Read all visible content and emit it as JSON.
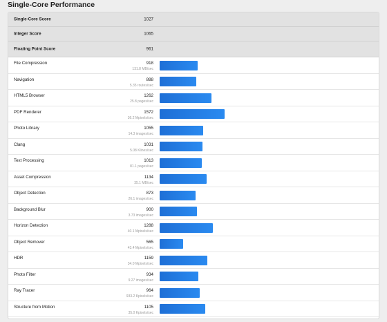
{
  "page": {
    "title": "Single-Core Performance"
  },
  "colors": {
    "bar": "#2079e3",
    "summary_bg": "#e2e2e2"
  },
  "summary": [
    {
      "label": "Single-Core Score",
      "value": "1027"
    },
    {
      "label": "Integer Score",
      "value": "1065"
    },
    {
      "label": "Floating Point Score",
      "value": "961"
    }
  ],
  "benchmarks": [
    {
      "name": "File Compression",
      "score": "918",
      "rate": "131.8 MB/sec"
    },
    {
      "name": "Navigation",
      "score": "888",
      "rate": "5.35 routes/sec"
    },
    {
      "name": "HTML5 Browser",
      "score": "1262",
      "rate": "25.8 pages/sec"
    },
    {
      "name": "PDF Renderer",
      "score": "1572",
      "rate": "36.2 Mpixels/sec"
    },
    {
      "name": "Photo Library",
      "score": "1055",
      "rate": "14.3 images/sec"
    },
    {
      "name": "Clang",
      "score": "1031",
      "rate": "5.08 Klines/sec"
    },
    {
      "name": "Text Processing",
      "score": "1013",
      "rate": "81.1 pages/sec"
    },
    {
      "name": "Asset Compression",
      "score": "1134",
      "rate": "35.1 MB/sec"
    },
    {
      "name": "Object Detection",
      "score": "873",
      "rate": "26.1 images/sec"
    },
    {
      "name": "Background Blur",
      "score": "900",
      "rate": "3.73 images/sec"
    },
    {
      "name": "Horizon Detection",
      "score": "1288",
      "rate": "40.1 Mpixels/sec"
    },
    {
      "name": "Object Remover",
      "score": "565",
      "rate": "43.4 Mpixels/sec"
    },
    {
      "name": "HDR",
      "score": "1159",
      "rate": "34.0 Mpixels/sec"
    },
    {
      "name": "Photo Filter",
      "score": "934",
      "rate": "9.27 images/sec"
    },
    {
      "name": "Ray Tracer",
      "score": "964",
      "rate": "933.2 Kpixels/sec"
    },
    {
      "name": "Structure from Motion",
      "score": "1105",
      "rate": "35.0 Kpixels/sec"
    }
  ]
}
